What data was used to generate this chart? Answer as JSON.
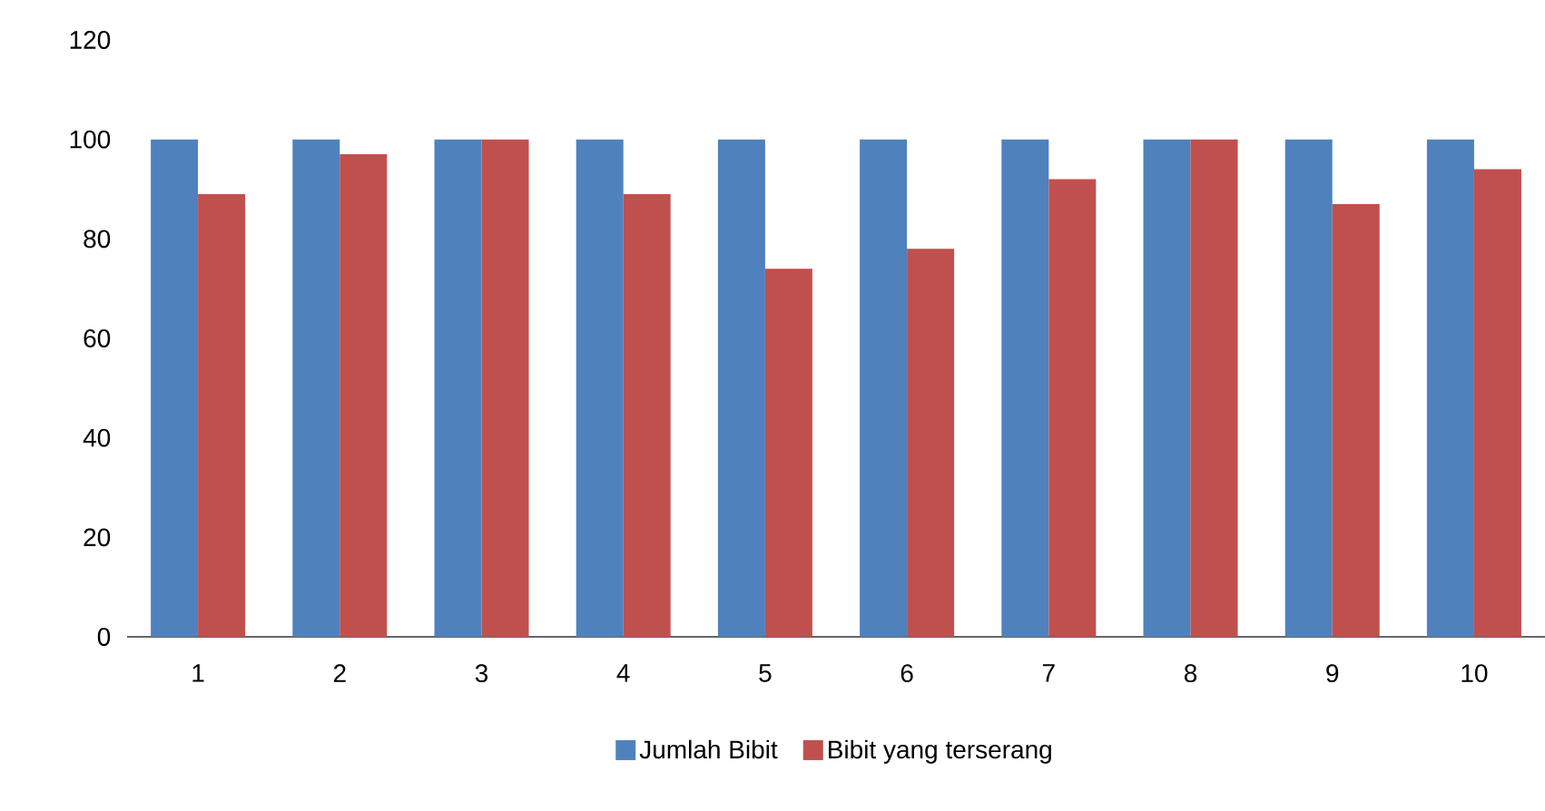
{
  "chart_data": {
    "type": "bar",
    "categories": [
      "1",
      "2",
      "3",
      "4",
      "5",
      "6",
      "7",
      "8",
      "9",
      "10"
    ],
    "series": [
      {
        "name": "Jumlah Bibit",
        "color": "#4f81bd",
        "values": [
          100,
          100,
          100,
          100,
          100,
          100,
          100,
          100,
          100,
          100
        ]
      },
      {
        "name": "Bibit yang terserang",
        "color": "#c0504d",
        "values": [
          89,
          97,
          100,
          89,
          74,
          78,
          92,
          100,
          87,
          94
        ]
      }
    ],
    "ylim": [
      0,
      120
    ],
    "yticks": [
      0,
      20,
      40,
      60,
      80,
      100,
      120
    ],
    "grid": false,
    "legend": "bottom"
  }
}
